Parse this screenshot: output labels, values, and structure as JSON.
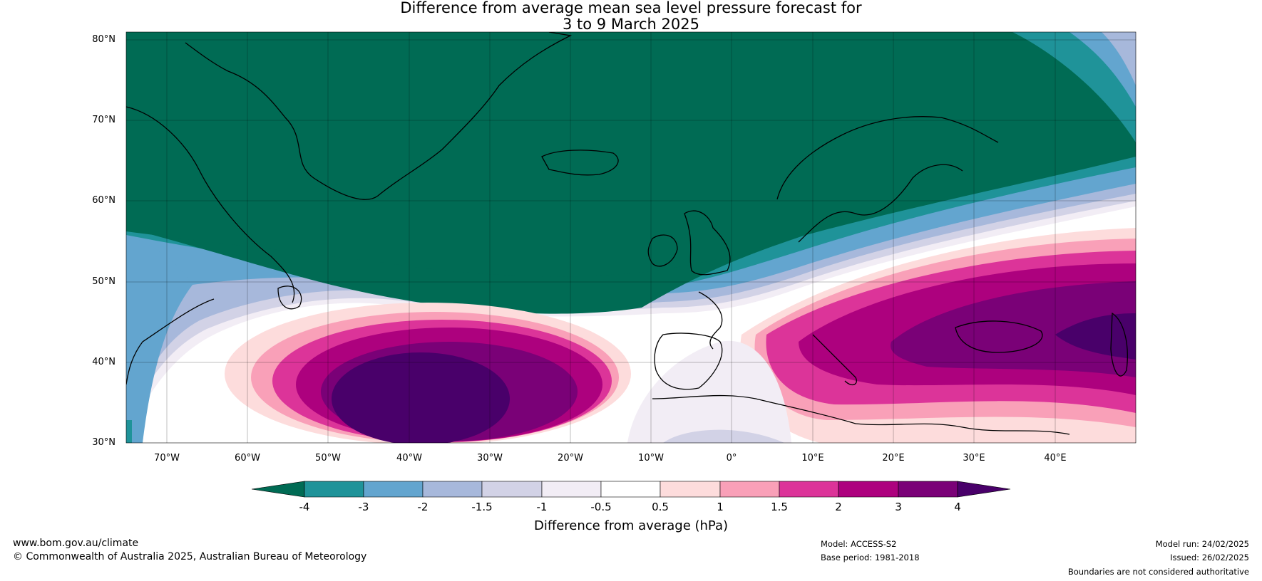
{
  "title": {
    "line1": "Difference from average mean sea level pressure forecast for",
    "line2": "3 to 9 March 2025"
  },
  "map": {
    "lat_labels": [
      "80°N",
      "70°N",
      "60°N",
      "50°N",
      "40°N",
      "30°N"
    ],
    "lon_labels": [
      "70°W",
      "60°W",
      "50°W",
      "40°W",
      "30°W",
      "20°W",
      "10°W",
      "0°",
      "10°E",
      "20°E",
      "30°E",
      "40°E"
    ],
    "lat_range": [
      30,
      81
    ],
    "lon_range": [
      -75,
      50
    ]
  },
  "colorbar": {
    "ticks": [
      "-4",
      "-3",
      "-2",
      "-1.5",
      "-1",
      "-0.5",
      "0.5",
      "1",
      "1.5",
      "2",
      "3",
      "4"
    ],
    "colors": [
      "#006b54",
      "#1f9399",
      "#63a5cf",
      "#a7b8db",
      "#d2d2e6",
      "#f2edf5",
      "#ffffff",
      "#fddcdc",
      "#f9a0b8",
      "#dc3499",
      "#ad017e",
      "#7a0177",
      "#49006a"
    ],
    "label": "Difference from average (hPa)"
  },
  "footer": {
    "website": "www.bom.gov.au/climate",
    "copyright": "© Commonwealth of Australia 2025, Australian Bureau of Meteorology",
    "model": "Model: ACCESS-S2",
    "base_period": "Base period: 1981-2018",
    "model_run": "Model run: 24/02/2025",
    "issued": "Issued: 26/02/2025",
    "boundaries": "Boundaries are not considered authoritative"
  }
}
